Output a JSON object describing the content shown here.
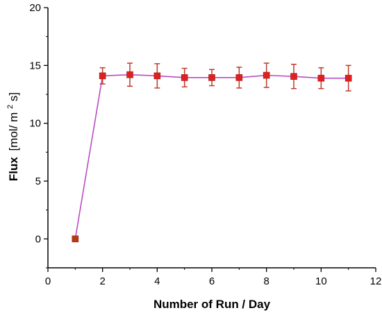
{
  "chart_data": {
    "type": "scatter",
    "xlabel": "Number of Run / Day",
    "ylabel_bold": "Flux",
    "ylabel_unit": "[mol/ m",
    "ylabel_sup": "2",
    "ylabel_tail": " s]",
    "xlim": [
      0,
      12
    ],
    "ylim": [
      -2.5,
      20
    ],
    "x_ticks": [
      0,
      2,
      4,
      6,
      8,
      10,
      12
    ],
    "y_ticks": [
      0,
      5,
      10,
      15,
      20
    ],
    "grid": false,
    "series": [
      {
        "x": [
          1,
          2,
          3,
          4,
          5,
          6,
          7,
          8,
          9,
          10,
          11
        ],
        "y": [
          0,
          14.1,
          14.2,
          14.1,
          13.95,
          13.95,
          13.95,
          14.15,
          14.05,
          13.9,
          13.9
        ],
        "err": [
          0,
          0.7,
          1.0,
          1.05,
          0.8,
          0.7,
          0.9,
          1.05,
          1.05,
          0.9,
          1.1
        ],
        "line_color": "#b94bc2",
        "marker_color": "#e02020",
        "first_marker_color": "#b33a1a",
        "error_color": "#c0392b",
        "marker": "square"
      }
    ]
  }
}
